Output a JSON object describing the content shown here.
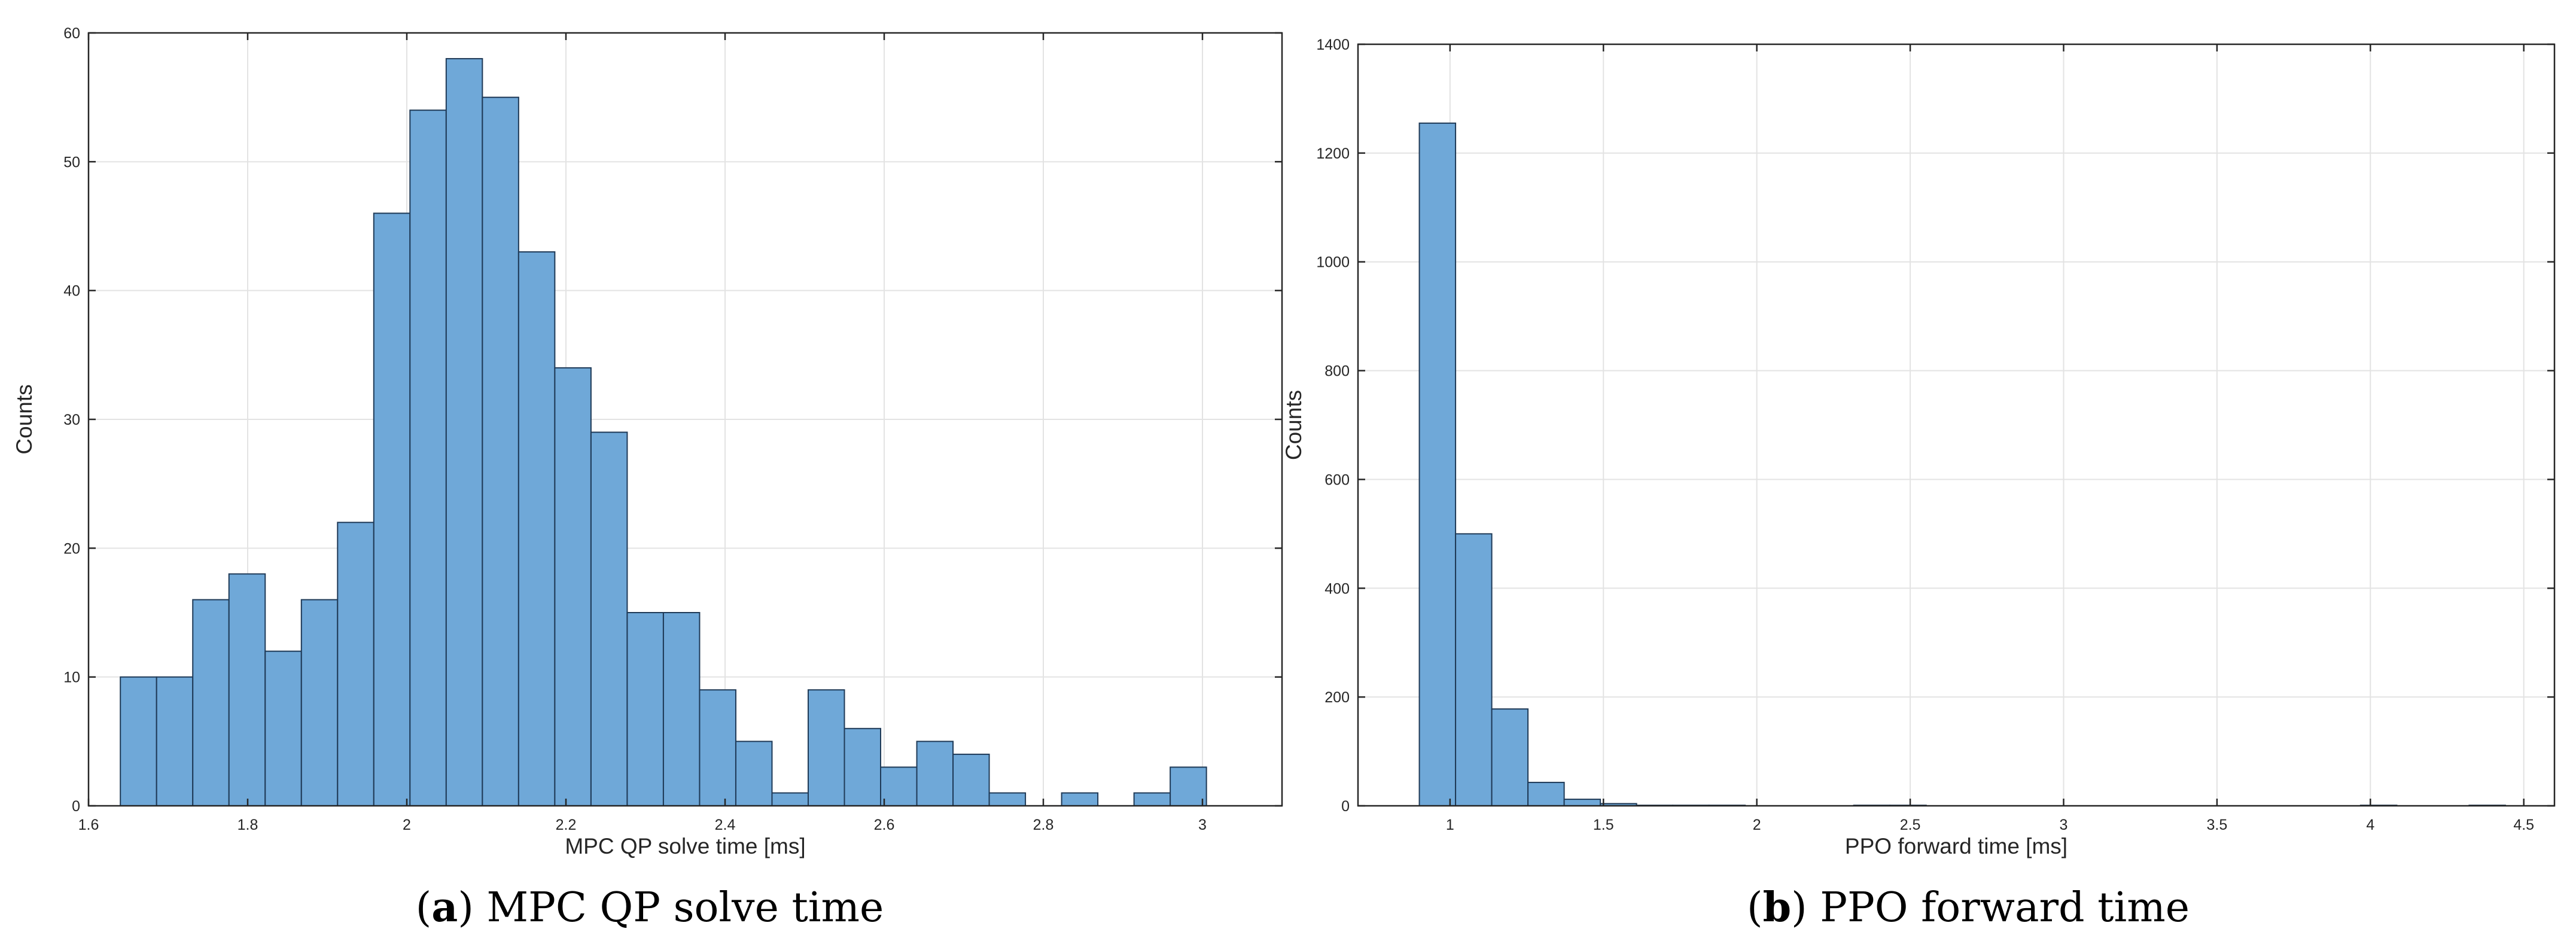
{
  "chart_data": [
    {
      "type": "bar",
      "caption_letter": "a",
      "caption_text": ") MPC QP solve time",
      "xlabel": "MPC QP solve time [ms]",
      "ylabel": "Counts",
      "xlim": [
        1.6,
        3.1
      ],
      "ylim": [
        0,
        60
      ],
      "xticks": [
        1.6,
        1.8,
        2,
        2.2,
        2.4,
        2.6,
        2.8,
        3
      ],
      "xtick_labels": [
        "1.6",
        "1.8",
        "2",
        "2.2",
        "2.4",
        "2.6",
        "2.8",
        "3"
      ],
      "yticks": [
        0,
        10,
        20,
        30,
        40,
        50,
        60
      ],
      "ytick_labels": [
        "0",
        "10",
        "20",
        "30",
        "40",
        "50",
        "60"
      ],
      "grid": true,
      "bar_color": "#6fa8d8",
      "bin_start": 1.64,
      "bin_width": 0.0455,
      "values": [
        10,
        10,
        16,
        18,
        12,
        16,
        22,
        46,
        54,
        58,
        55,
        43,
        34,
        29,
        15,
        15,
        9,
        5,
        1,
        9,
        6,
        3,
        5,
        4,
        1,
        0,
        1,
        0,
        1,
        3
      ]
    },
    {
      "type": "bar",
      "caption_letter": "b",
      "caption_text": ") PPO forward time",
      "xlabel": "PPO forward time [ms]",
      "ylabel": "Counts",
      "xlim": [
        0.7,
        4.6
      ],
      "ylim": [
        0,
        1400
      ],
      "xticks": [
        1,
        1.5,
        2,
        2.5,
        3,
        3.5,
        4,
        4.5
      ],
      "xtick_labels": [
        "1",
        "1.5",
        "2",
        "2.5",
        "3",
        "3.5",
        "4",
        "4.5"
      ],
      "yticks": [
        0,
        200,
        400,
        600,
        800,
        1000,
        1200,
        1400
      ],
      "ytick_labels": [
        "0",
        "200",
        "400",
        "600",
        "800",
        "1000",
        "1200",
        "1400"
      ],
      "grid": true,
      "bar_color": "#6fa8d8",
      "bin_start": 0.9,
      "bin_width": 0.118,
      "values": [
        1255,
        500,
        178,
        43,
        12,
        4,
        1,
        1,
        1,
        0,
        0,
        0,
        1,
        1,
        0,
        0,
        0,
        0,
        0,
        0,
        0,
        0,
        0,
        0,
        0,
        0,
        1,
        0,
        0,
        1
      ]
    }
  ]
}
